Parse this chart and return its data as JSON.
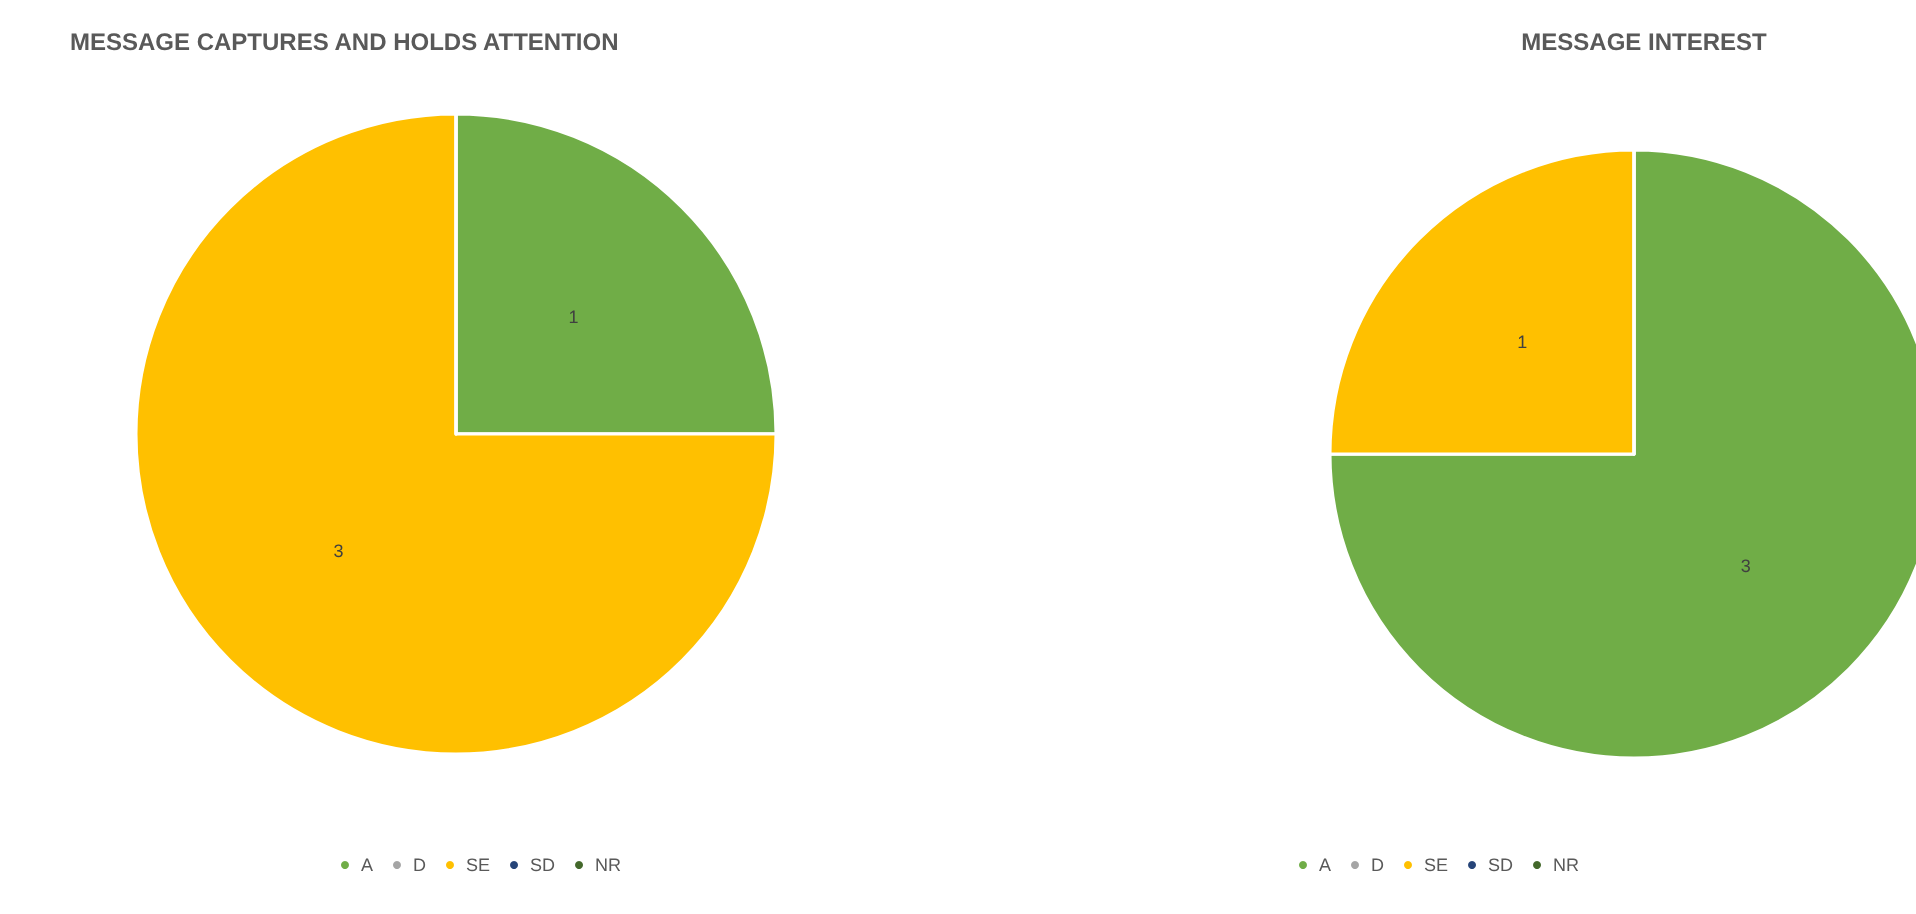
{
  "chart_data": [
    {
      "type": "pie",
      "title": "MESSAGE CAPTURES AND HOLDS ATTENTION",
      "categories": [
        "A",
        "D",
        "SE",
        "SD",
        "NR"
      ],
      "values": [
        1,
        0,
        3,
        0,
        0
      ],
      "colors": [
        "#70ad47",
        "#a5a5a5",
        "#ffc000",
        "#264478",
        "#43682b"
      ],
      "data_labels": true,
      "legend": "bottom"
    },
    {
      "type": "pie",
      "title": "MESSAGE INTEREST",
      "categories": [
        "A",
        "D",
        "SE",
        "SD",
        "NR"
      ],
      "values": [
        3,
        0,
        1,
        0,
        0
      ],
      "colors": [
        "#70ad47",
        "#a5a5a5",
        "#ffc000",
        "#264478",
        "#43682b"
      ],
      "data_labels": true,
      "legend": "bottom"
    }
  ]
}
